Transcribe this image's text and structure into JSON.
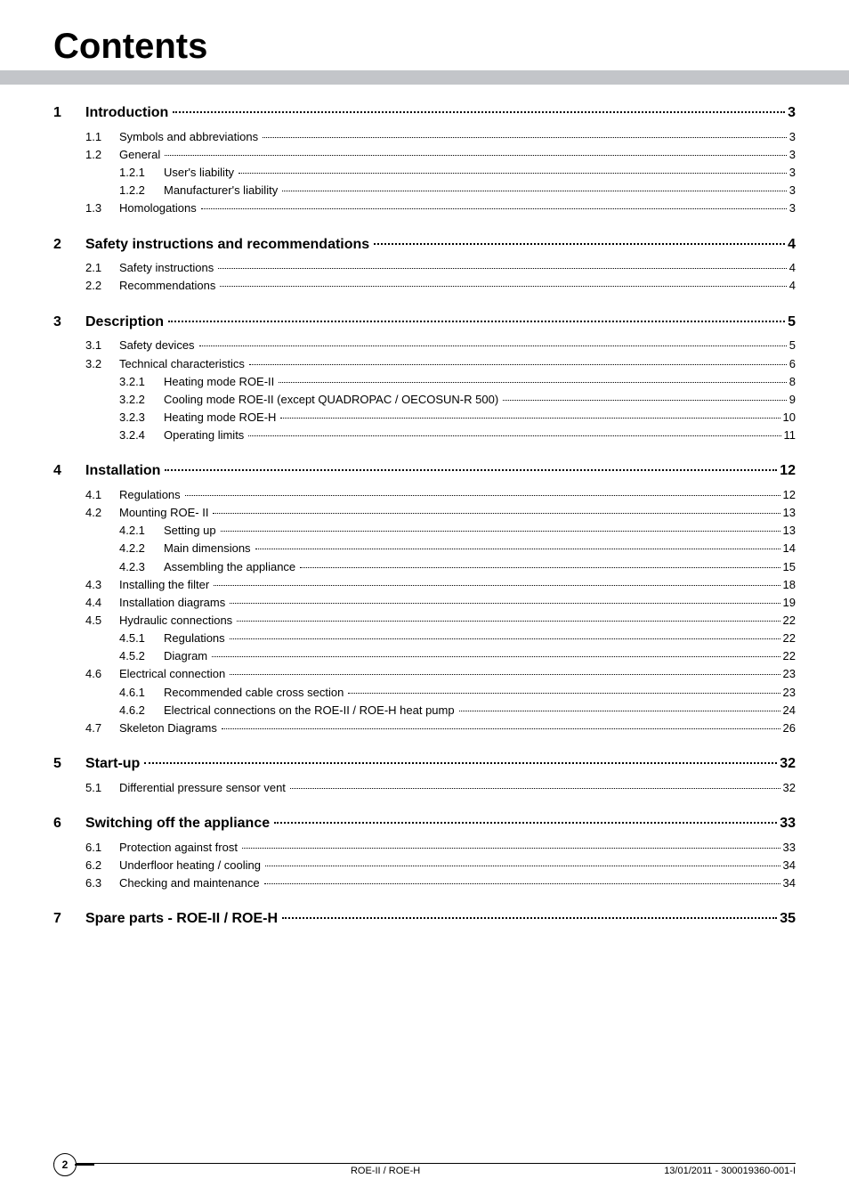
{
  "title": "Contents",
  "toc": [
    {
      "level": 1,
      "num": "1",
      "label": "Introduction",
      "page": "3"
    },
    {
      "level": 2,
      "num": "1.1",
      "label": "Symbols and abbreviations",
      "page": "3"
    },
    {
      "level": 2,
      "num": "1.2",
      "label": "General",
      "page": "3"
    },
    {
      "level": 3,
      "num": "1.2.1",
      "label": "User's liability",
      "page": "3"
    },
    {
      "level": 3,
      "num": "1.2.2",
      "label": "Manufacturer's liability",
      "page": "3"
    },
    {
      "level": 2,
      "num": "1.3",
      "label": "Homologations",
      "page": "3"
    },
    {
      "level": 1,
      "num": "2",
      "label": "Safety instructions and recommendations",
      "page": "4"
    },
    {
      "level": 2,
      "num": "2.1",
      "label": "Safety instructions",
      "page": "4"
    },
    {
      "level": 2,
      "num": "2.2",
      "label": "Recommendations",
      "page": "4"
    },
    {
      "level": 1,
      "num": "3",
      "label": "Description",
      "page": "5"
    },
    {
      "level": 2,
      "num": "3.1",
      "label": "Safety devices",
      "page": "5"
    },
    {
      "level": 2,
      "num": "3.2",
      "label": "Technical characteristics",
      "page": "6"
    },
    {
      "level": 3,
      "num": "3.2.1",
      "label": "Heating mode ROE-II",
      "page": "8"
    },
    {
      "level": 3,
      "num": "3.2.2",
      "label": "Cooling mode ROE-II (except QUADROPAC / OECOSUN-R 500)",
      "page": "9"
    },
    {
      "level": 3,
      "num": "3.2.3",
      "label": "Heating mode ROE-H",
      "page": "10"
    },
    {
      "level": 3,
      "num": "3.2.4",
      "label": "Operating limits",
      "page": "11"
    },
    {
      "level": 1,
      "num": "4",
      "label": "Installation",
      "page": "12"
    },
    {
      "level": 2,
      "num": "4.1",
      "label": "Regulations",
      "page": "12"
    },
    {
      "level": 2,
      "num": "4.2",
      "label": "Mounting ROE- II",
      "page": "13"
    },
    {
      "level": 3,
      "num": "4.2.1",
      "label": "Setting up",
      "page": "13"
    },
    {
      "level": 3,
      "num": "4.2.2",
      "label": "Main dimensions",
      "page": "14"
    },
    {
      "level": 3,
      "num": "4.2.3",
      "label": "Assembling the appliance",
      "page": "15"
    },
    {
      "level": 2,
      "num": "4.3",
      "label": "Installing the filter",
      "page": "18"
    },
    {
      "level": 2,
      "num": "4.4",
      "label": "Installation diagrams",
      "page": "19"
    },
    {
      "level": 2,
      "num": "4.5",
      "label": "Hydraulic connections",
      "page": "22"
    },
    {
      "level": 3,
      "num": "4.5.1",
      "label": "Regulations",
      "page": "22"
    },
    {
      "level": 3,
      "num": "4.5.2",
      "label": "Diagram",
      "page": "22"
    },
    {
      "level": 2,
      "num": "4.6",
      "label": "Electrical connection",
      "page": "23"
    },
    {
      "level": 3,
      "num": "4.6.1",
      "label": "Recommended cable cross section",
      "page": "23"
    },
    {
      "level": 3,
      "num": "4.6.2",
      "label": "Electrical connections on the ROE-II / ROE-H heat pump",
      "page": "24"
    },
    {
      "level": 2,
      "num": "4.7",
      "label": "Skeleton Diagrams",
      "page": "26"
    },
    {
      "level": 1,
      "num": "5",
      "label": "Start-up",
      "page": "32"
    },
    {
      "level": 2,
      "num": "5.1",
      "label": "Differential pressure sensor vent",
      "page": "32"
    },
    {
      "level": 1,
      "num": "6",
      "label": "Switching off the appliance",
      "page": "33"
    },
    {
      "level": 2,
      "num": "6.1",
      "label": "Protection against frost",
      "page": "33"
    },
    {
      "level": 2,
      "num": "6.2",
      "label": "Underfloor heating / cooling",
      "page": "34"
    },
    {
      "level": 2,
      "num": "6.3",
      "label": "Checking and maintenance",
      "page": "34"
    },
    {
      "level": 1,
      "num": "7",
      "label": "Spare parts - ROE-II / ROE-H",
      "page": "35"
    }
  ],
  "footer": {
    "page_number": "2",
    "center": "ROE-II / ROE-H",
    "right": "13/01/2011 - 300019360-001-I"
  }
}
